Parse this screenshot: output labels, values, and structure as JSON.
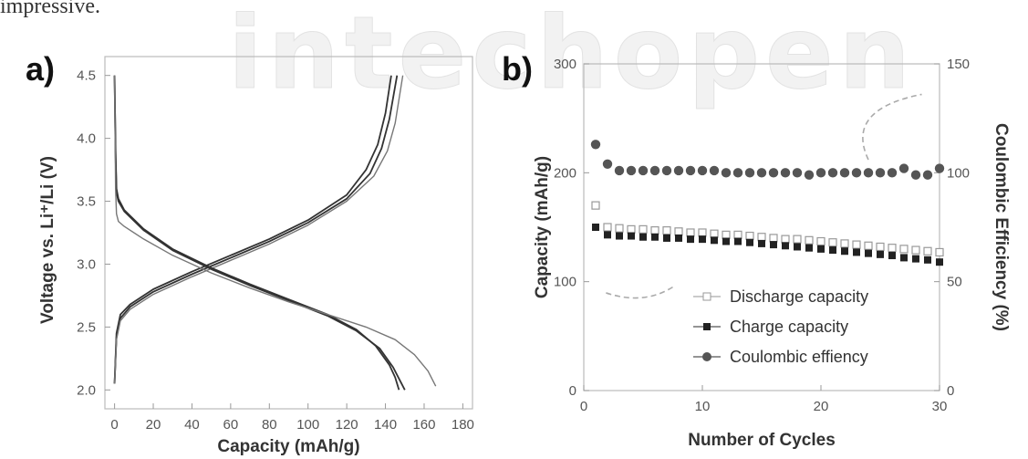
{
  "header_text": "impressive.",
  "watermark": "intechopen",
  "chart_data": [
    {
      "panel_label": "a)",
      "type": "line",
      "xlabel": "Capacity (mAh/g)",
      "ylabel": "Voltage vs. Li⁺/Li (V)",
      "xlim": [
        -5,
        185
      ],
      "ylim": [
        1.85,
        4.65
      ],
      "xticks": [
        0,
        20,
        40,
        60,
        80,
        100,
        120,
        140,
        160,
        180
      ],
      "yticks": [
        2.0,
        2.5,
        3.0,
        3.5,
        4.0,
        4.5
      ],
      "colors": {
        "curve": "#333333",
        "curve_light": "#777777",
        "frame": "#bbbbbb"
      },
      "series": [
        {
          "kind": "charge",
          "x": [
            0,
            1,
            3,
            8,
            20,
            40,
            60,
            80,
            100,
            120,
            130,
            136,
            140,
            143
          ],
          "y": [
            2.05,
            2.45,
            2.6,
            2.68,
            2.8,
            2.94,
            3.07,
            3.2,
            3.35,
            3.55,
            3.75,
            3.95,
            4.2,
            4.5
          ]
        },
        {
          "kind": "charge",
          "x": [
            0,
            1,
            3,
            8,
            20,
            40,
            60,
            80,
            100,
            120,
            132,
            138,
            142,
            146
          ],
          "y": [
            2.05,
            2.42,
            2.57,
            2.66,
            2.78,
            2.92,
            3.05,
            3.18,
            3.33,
            3.52,
            3.72,
            3.92,
            4.15,
            4.5
          ]
        },
        {
          "kind": "charge",
          "x": [
            0,
            1,
            3,
            8,
            20,
            40,
            60,
            80,
            100,
            120,
            134,
            141,
            145,
            149
          ],
          "y": [
            2.05,
            2.4,
            2.55,
            2.64,
            2.76,
            2.9,
            3.03,
            3.16,
            3.31,
            3.5,
            3.7,
            3.9,
            4.12,
            4.5
          ]
        },
        {
          "kind": "discharge",
          "x": [
            0,
            0.5,
            1,
            2,
            5,
            15,
            30,
            50,
            70,
            90,
            110,
            125,
            135,
            142,
            145,
            147
          ],
          "y": [
            4.5,
            3.9,
            3.6,
            3.52,
            3.43,
            3.28,
            3.12,
            2.97,
            2.84,
            2.72,
            2.6,
            2.48,
            2.35,
            2.2,
            2.1,
            2.0
          ]
        },
        {
          "kind": "discharge",
          "x": [
            0,
            0.5,
            1,
            2,
            5,
            15,
            30,
            50,
            70,
            90,
            110,
            125,
            137,
            144,
            147,
            150
          ],
          "y": [
            4.5,
            3.85,
            3.57,
            3.5,
            3.42,
            3.27,
            3.11,
            2.96,
            2.83,
            2.71,
            2.59,
            2.47,
            2.33,
            2.18,
            2.09,
            2.0
          ]
        },
        {
          "kind": "discharge",
          "x": [
            0,
            0.5,
            1,
            2,
            5,
            15,
            30,
            50,
            70,
            90,
            110,
            130,
            145,
            155,
            162,
            166
          ],
          "y": [
            4.5,
            3.6,
            3.4,
            3.34,
            3.3,
            3.2,
            3.07,
            2.93,
            2.81,
            2.7,
            2.6,
            2.5,
            2.4,
            2.28,
            2.15,
            2.03
          ]
        }
      ]
    },
    {
      "panel_label": "b)",
      "type": "scatter",
      "xlabel": "Number of Cycles",
      "ylabel": "Capacity (mAh/g)",
      "y2label": "Coulombic Efficiency (%)",
      "xlim": [
        0,
        30
      ],
      "ylim": [
        0,
        300
      ],
      "y2lim": [
        0,
        150
      ],
      "xticks": [
        0,
        10,
        20,
        30
      ],
      "yticks": [
        0,
        100,
        200,
        300
      ],
      "y2ticks": [
        0,
        50,
        100,
        150
      ],
      "colors": {
        "marker": "#222222",
        "open": "#999999",
        "efficiency": "#555555",
        "arrow": "#aaaaaa"
      },
      "series": [
        {
          "name": "Discharge capacity",
          "marker": "open-square",
          "x": [
            1,
            2,
            3,
            4,
            5,
            6,
            7,
            8,
            9,
            10,
            11,
            12,
            13,
            14,
            15,
            16,
            17,
            18,
            19,
            20,
            21,
            22,
            23,
            24,
            25,
            26,
            27,
            28,
            29,
            30
          ],
          "y": [
            170,
            150,
            149,
            148,
            148,
            147,
            147,
            146,
            145,
            145,
            144,
            143,
            143,
            142,
            141,
            140,
            139,
            139,
            138,
            137,
            136,
            135,
            134,
            133,
            132,
            131,
            130,
            129,
            128,
            127
          ]
        },
        {
          "name": "Charge capacity",
          "marker": "filled-square",
          "x": [
            1,
            2,
            3,
            4,
            5,
            6,
            7,
            8,
            9,
            10,
            11,
            12,
            13,
            14,
            15,
            16,
            17,
            18,
            19,
            20,
            21,
            22,
            23,
            24,
            25,
            26,
            27,
            28,
            29,
            30
          ],
          "y": [
            150,
            143,
            142,
            142,
            141,
            141,
            140,
            140,
            139,
            139,
            138,
            137,
            137,
            136,
            135,
            134,
            133,
            132,
            131,
            130,
            129,
            128,
            127,
            126,
            125,
            124,
            122,
            121,
            120,
            118
          ]
        },
        {
          "name": "Coulombic effiency",
          "marker": "filled-circle",
          "axis": "right",
          "x": [
            1,
            2,
            3,
            4,
            5,
            6,
            7,
            8,
            9,
            10,
            11,
            12,
            13,
            14,
            15,
            16,
            17,
            18,
            19,
            20,
            21,
            22,
            23,
            24,
            25,
            26,
            27,
            28,
            29,
            30
          ],
          "y": [
            113,
            104,
            101,
            101,
            101,
            101,
            101,
            101,
            101,
            101,
            101,
            100,
            100,
            100,
            100,
            100,
            100,
            100,
            99,
            100,
            100,
            100,
            100,
            100,
            100,
            100,
            102,
            99,
            99,
            102
          ]
        }
      ],
      "legend_position": "bottom-right"
    }
  ]
}
